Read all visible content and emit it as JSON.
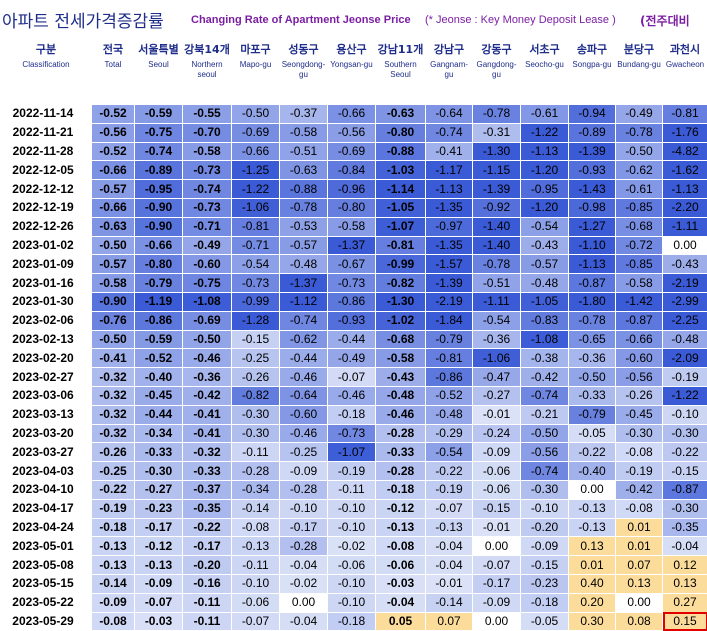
{
  "title_ko": "아파트 전세가격증감률",
  "title_en": "Changing Rate of Apartment Jeonse Price",
  "note": "(* Jeonse : Key Money Deposit Lease )",
  "unit_label": "(전주대비",
  "chart_data": {
    "type": "table",
    "row_header": {
      "ko": "구분",
      "en": "Classification"
    },
    "columns": [
      {
        "ko": "전국",
        "en": "Total"
      },
      {
        "ko": "서울특별",
        "en": "Seoul"
      },
      {
        "ko": "강북14개",
        "en": "Northern seoul"
      },
      {
        "ko": "마포구",
        "en": "Mapo-gu"
      },
      {
        "ko": "성동구",
        "en": "Seongdong-gu"
      },
      {
        "ko": "용산구",
        "en": "Yongsan-gu"
      },
      {
        "ko": "강남11개",
        "en": "Southern Seoul"
      },
      {
        "ko": "강남구",
        "en": "Gangnam-gu"
      },
      {
        "ko": "강동구",
        "en": "Gangdong-gu"
      },
      {
        "ko": "서초구",
        "en": "Seocho-gu"
      },
      {
        "ko": "송파구",
        "en": "Songpa-gu"
      },
      {
        "ko": "분당구",
        "en": "Bundang-gu"
      },
      {
        "ko": "과천시",
        "en": "Gwacheon"
      }
    ],
    "rows": [
      {
        "date": "2022-11-14",
        "values": [
          -0.52,
          -0.59,
          -0.55,
          -0.5,
          -0.37,
          -0.66,
          -0.63,
          -0.64,
          -0.78,
          -0.61,
          -0.94,
          -0.49,
          -0.81
        ]
      },
      {
        "date": "2022-11-21",
        "values": [
          -0.56,
          -0.75,
          -0.7,
          -0.69,
          -0.58,
          -0.56,
          -0.8,
          -0.74,
          -0.31,
          -1.22,
          -0.89,
          -0.78,
          -1.76
        ]
      },
      {
        "date": "2022-11-28",
        "values": [
          -0.52,
          -0.74,
          -0.58,
          -0.66,
          -0.51,
          -0.69,
          -0.88,
          -0.41,
          -1.3,
          -1.13,
          -1.39,
          -0.5,
          -4.82
        ]
      },
      {
        "date": "2022-12-05",
        "values": [
          -0.66,
          -0.89,
          -0.73,
          -1.25,
          -0.63,
          -0.84,
          -1.03,
          -1.17,
          -1.15,
          -1.2,
          -0.93,
          -0.62,
          -1.62
        ]
      },
      {
        "date": "2022-12-12",
        "values": [
          -0.57,
          -0.95,
          -0.74,
          -1.22,
          -0.88,
          -0.96,
          -1.14,
          -1.13,
          -1.39,
          -0.95,
          -1.43,
          -0.61,
          -1.13
        ]
      },
      {
        "date": "2022-12-19",
        "values": [
          -0.66,
          -0.9,
          -0.73,
          -1.06,
          -0.78,
          -0.8,
          -1.05,
          -1.35,
          -0.92,
          -1.2,
          -0.98,
          -0.85,
          -2.2
        ]
      },
      {
        "date": "2022-12-26",
        "values": [
          -0.63,
          -0.9,
          -0.71,
          -0.81,
          -0.53,
          -0.58,
          -1.07,
          -0.97,
          -1.4,
          -0.54,
          -1.27,
          -0.68,
          -1.11
        ]
      },
      {
        "date": "2023-01-02",
        "values": [
          -0.5,
          -0.66,
          -0.49,
          -0.71,
          -0.57,
          -1.37,
          -0.81,
          -1.35,
          -1.4,
          -0.43,
          -1.1,
          -0.72,
          0.0
        ]
      },
      {
        "date": "2023-01-09",
        "values": [
          -0.57,
          -0.8,
          -0.6,
          -0.54,
          -0.48,
          -0.67,
          -0.99,
          -1.57,
          -0.78,
          -0.57,
          -1.13,
          -0.85,
          -0.43
        ]
      },
      {
        "date": "2023-01-16",
        "values": [
          -0.58,
          -0.79,
          -0.75,
          -0.73,
          -1.37,
          -0.73,
          -0.82,
          -1.39,
          -0.51,
          -0.48,
          -0.87,
          -0.58,
          -2.19
        ]
      },
      {
        "date": "2023-01-30",
        "values": [
          -0.9,
          -1.19,
          -1.08,
          -0.99,
          -1.12,
          -0.86,
          -1.3,
          -2.19,
          -1.11,
          -1.05,
          -1.8,
          -1.42,
          -2.99
        ]
      },
      {
        "date": "2023-02-06",
        "values": [
          -0.76,
          -0.86,
          -0.69,
          -1.28,
          -0.74,
          -0.93,
          -1.02,
          -1.84,
          -0.54,
          -0.83,
          -0.78,
          -0.87,
          -2.25
        ]
      },
      {
        "date": "2023-02-13",
        "values": [
          -0.5,
          -0.59,
          -0.5,
          -0.15,
          -0.62,
          -0.44,
          -0.68,
          -0.79,
          -0.36,
          -1.08,
          -0.65,
          -0.66,
          -0.48
        ]
      },
      {
        "date": "2023-02-20",
        "values": [
          -0.41,
          -0.52,
          -0.46,
          -0.25,
          -0.44,
          -0.49,
          -0.58,
          -0.81,
          -1.06,
          -0.38,
          -0.36,
          -0.6,
          -2.09
        ]
      },
      {
        "date": "2023-02-27",
        "values": [
          -0.32,
          -0.4,
          -0.36,
          -0.26,
          -0.46,
          -0.07,
          -0.43,
          -0.86,
          -0.47,
          -0.42,
          -0.5,
          -0.56,
          -0.19
        ]
      },
      {
        "date": "2023-03-06",
        "values": [
          -0.32,
          -0.45,
          -0.42,
          -0.82,
          -0.64,
          -0.46,
          -0.48,
          -0.52,
          -0.27,
          -0.74,
          -0.33,
          -0.26,
          -1.22
        ]
      },
      {
        "date": "2023-03-13",
        "values": [
          -0.32,
          -0.44,
          -0.41,
          -0.3,
          -0.6,
          -0.18,
          -0.46,
          -0.48,
          -0.01,
          -0.21,
          -0.79,
          -0.45,
          -0.1
        ]
      },
      {
        "date": "2023-03-20",
        "values": [
          -0.32,
          -0.34,
          -0.41,
          -0.3,
          -0.46,
          -0.73,
          -0.28,
          -0.29,
          -0.24,
          -0.5,
          -0.05,
          -0.3,
          -0.3
        ]
      },
      {
        "date": "2023-03-27",
        "values": [
          -0.26,
          -0.33,
          -0.32,
          -0.11,
          -0.25,
          -1.07,
          -0.33,
          -0.54,
          -0.09,
          -0.56,
          -0.22,
          -0.08,
          -0.22
        ]
      },
      {
        "date": "2023-04-03",
        "values": [
          -0.25,
          -0.3,
          -0.33,
          -0.28,
          -0.09,
          -0.19,
          -0.28,
          -0.22,
          -0.06,
          -0.74,
          -0.4,
          -0.19,
          -0.15
        ]
      },
      {
        "date": "2023-04-10",
        "values": [
          -0.22,
          -0.27,
          -0.37,
          -0.34,
          -0.28,
          -0.11,
          -0.18,
          -0.19,
          -0.06,
          -0.3,
          0.0,
          -0.42,
          -0.87
        ]
      },
      {
        "date": "2023-04-17",
        "values": [
          -0.19,
          -0.23,
          -0.35,
          -0.14,
          -0.1,
          -0.1,
          -0.12,
          -0.07,
          -0.15,
          -0.1,
          -0.13,
          -0.08,
          -0.3
        ]
      },
      {
        "date": "2023-04-24",
        "values": [
          -0.18,
          -0.17,
          -0.22,
          -0.08,
          -0.17,
          -0.1,
          -0.13,
          -0.13,
          -0.01,
          -0.2,
          -0.13,
          0.01,
          -0.35
        ]
      },
      {
        "date": "2023-05-01",
        "values": [
          -0.13,
          -0.12,
          -0.17,
          -0.13,
          -0.28,
          -0.02,
          -0.08,
          -0.04,
          0.0,
          -0.09,
          0.13,
          0.01,
          -0.04
        ]
      },
      {
        "date": "2023-05-08",
        "values": [
          -0.13,
          -0.13,
          -0.2,
          -0.11,
          -0.04,
          -0.06,
          -0.06,
          -0.04,
          -0.07,
          -0.15,
          0.01,
          0.07,
          0.12
        ]
      },
      {
        "date": "2023-05-15",
        "values": [
          -0.14,
          -0.09,
          -0.16,
          -0.1,
          -0.02,
          -0.1,
          -0.03,
          -0.01,
          -0.17,
          -0.23,
          0.4,
          0.13,
          0.13
        ]
      },
      {
        "date": "2023-05-22",
        "values": [
          -0.09,
          -0.07,
          -0.11,
          -0.06,
          0.0,
          -0.1,
          -0.04,
          -0.14,
          -0.09,
          -0.18,
          0.2,
          0.0,
          0.27
        ]
      },
      {
        "date": "2023-05-29",
        "values": [
          -0.08,
          -0.03,
          -0.11,
          -0.07,
          -0.04,
          -0.18,
          0.05,
          0.07,
          0.0,
          -0.05,
          0.3,
          0.08,
          0.15
        ]
      }
    ],
    "bold_columns": [
      0,
      1,
      2,
      6
    ],
    "highlighted_cell": {
      "row": 27,
      "col": 12
    },
    "colors": {
      "negative_light": "#dce3f7",
      "negative_dark": "#3a5ad6",
      "positive": "#fbdc9a",
      "header_text": "#1f2d8a",
      "highlight_border": "#e00000"
    }
  }
}
